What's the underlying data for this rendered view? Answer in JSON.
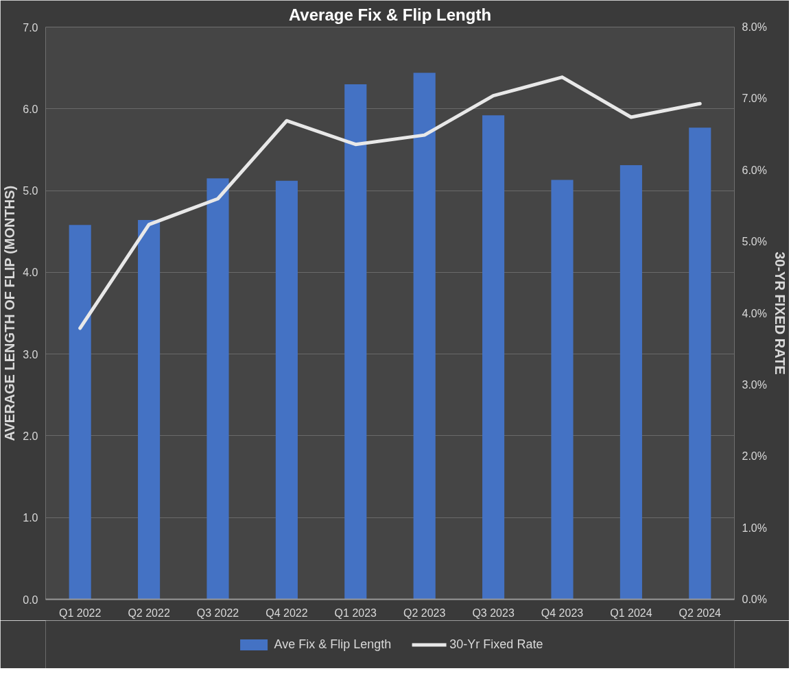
{
  "chart_data": {
    "type": "bar",
    "title": "Average Fix & Flip Length",
    "ylabel": "AVERAGE LENGTH OF FLIP (MONTHS)",
    "y2label": "30-YR FIXED RATE",
    "categories": [
      "Q1 2022",
      "Q2 2022",
      "Q3 2022",
      "Q4 2022",
      "Q1 2023",
      "Q2 2023",
      "Q3 2023",
      "Q4 2023",
      "Q1 2024",
      "Q2 2024"
    ],
    "series": [
      {
        "name": "Ave Fix & Flip Length",
        "color": "#4472c4",
        "values": [
          4.58,
          4.64,
          5.15,
          5.12,
          6.3,
          6.44,
          5.92,
          5.13,
          5.31,
          5.77
        ]
      },
      {
        "name": "30-Yr Fixed Rate",
        "type": "line",
        "axis": "y2",
        "color": "#e8e8e8",
        "values": [
          3.79,
          5.24,
          5.6,
          6.69,
          6.36,
          6.49,
          7.04,
          7.3,
          6.74,
          6.93
        ]
      }
    ],
    "ylim": [
      0,
      7
    ],
    "yticks": [
      {
        "value": 0,
        "label": "0.0"
      },
      {
        "value": 1,
        "label": "1.0"
      },
      {
        "value": 2,
        "label": "2.0"
      },
      {
        "value": 3,
        "label": "3.0"
      },
      {
        "value": 4,
        "label": "4.0"
      },
      {
        "value": 5,
        "label": "5.0"
      },
      {
        "value": 6,
        "label": "6.0"
      },
      {
        "value": 7,
        "label": "7.0"
      }
    ],
    "y2lim": [
      0,
      8
    ],
    "y2ticks": [
      {
        "value": 0,
        "label": "0.0%"
      },
      {
        "value": 1,
        "label": "1.0%"
      },
      {
        "value": 2,
        "label": "2.0%"
      },
      {
        "value": 3,
        "label": "3.0%"
      },
      {
        "value": 4,
        "label": "4.0%"
      },
      {
        "value": 5,
        "label": "5.0%"
      },
      {
        "value": 6,
        "label": "6.0%"
      },
      {
        "value": 7,
        "label": "7.0%"
      },
      {
        "value": 8,
        "label": "8.0%"
      }
    ],
    "grid": "y",
    "legend": "bottom"
  }
}
